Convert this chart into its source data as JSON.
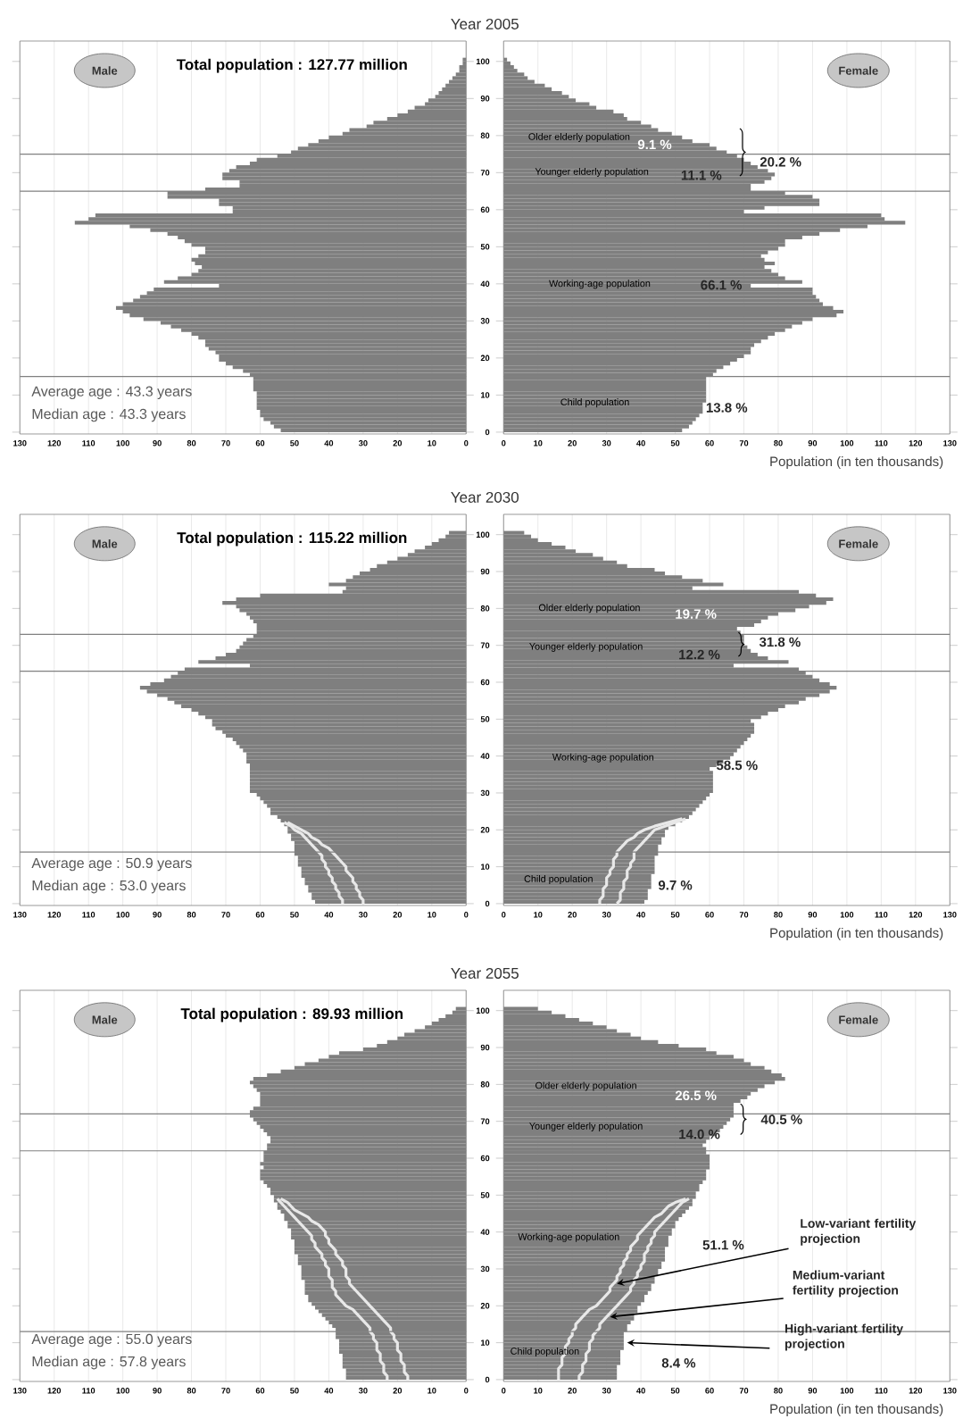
{
  "chart_data": [
    {
      "type": "bar",
      "orientation": "horizontal",
      "title": "Year 2005",
      "x": [
        0,
        1,
        2,
        3,
        4,
        5,
        6,
        7,
        8,
        9,
        10,
        11,
        12,
        13,
        14,
        15,
        16,
        17,
        18,
        19,
        20,
        21,
        22,
        23,
        24,
        25,
        26,
        27,
        28,
        29,
        30,
        31,
        32,
        33,
        34,
        35,
        36,
        37,
        38,
        39,
        40,
        41,
        42,
        43,
        44,
        45,
        46,
        47,
        48,
        49,
        50,
        51,
        52,
        53,
        54,
        55,
        56,
        57,
        58,
        59,
        60,
        61,
        62,
        63,
        64,
        65,
        66,
        67,
        68,
        69,
        70,
        71,
        72,
        73,
        74,
        75,
        76,
        77,
        78,
        79,
        80,
        81,
        82,
        83,
        84,
        85,
        86,
        87,
        88,
        89,
        90,
        91,
        92,
        93,
        94,
        95,
        96,
        97,
        98,
        99,
        100
      ],
      "series": [
        {
          "name": "Male",
          "color": "#7f7f7f",
          "values": [
            54,
            56,
            57,
            59,
            60,
            60,
            61,
            61,
            61,
            61,
            61,
            62,
            62,
            62,
            62,
            63,
            65,
            68,
            70,
            72,
            72,
            73,
            75,
            76,
            76,
            78,
            80,
            83,
            86,
            89,
            94,
            98,
            100,
            102,
            100,
            97,
            95,
            93,
            91,
            72,
            88,
            84,
            80,
            78,
            77,
            79,
            80,
            78,
            76,
            76,
            80,
            82,
            84,
            87,
            92,
            98,
            114,
            110,
            108,
            68,
            68,
            72,
            72,
            87,
            87,
            76,
            66,
            66,
            71,
            71,
            69,
            67,
            63,
            61,
            55,
            51,
            49,
            46,
            43,
            40,
            36,
            34,
            29,
            27,
            23,
            20,
            17,
            15,
            12,
            11,
            9,
            8,
            7,
            6,
            5,
            4,
            3,
            2,
            2,
            1,
            1
          ]
        }
      ],
      "xlim": [
        130,
        0
      ],
      "xticks": [
        0,
        10,
        20,
        30,
        40,
        50,
        60,
        70,
        80,
        90,
        100,
        110,
        120,
        130
      ],
      "ylim": [
        -0.5,
        105.5
      ],
      "yticks": [
        0,
        10,
        20,
        30,
        40,
        50,
        60,
        70,
        80,
        90,
        100
      ],
      "grid": "x",
      "tick_labels": "x",
      "ref_lines": [
        {
          "axis": "y",
          "value": 75,
          "color": "#808080"
        },
        {
          "axis": "y",
          "value": 65,
          "color": "#808080"
        },
        {
          "axis": "y",
          "value": 15,
          "color": "#808080"
        }
      ],
      "annotations": [
        "Total population : 127.77 million",
        "Average age : 43.3 years",
        "Median age : 43.3 years"
      ]
    },
    {
      "type": "bar",
      "orientation": "horizontal",
      "xlabel": "Population (in ten thousands)",
      "x": [
        0,
        1,
        2,
        3,
        4,
        5,
        6,
        7,
        8,
        9,
        10,
        11,
        12,
        13,
        14,
        15,
        16,
        17,
        18,
        19,
        20,
        21,
        22,
        23,
        24,
        25,
        26,
        27,
        28,
        29,
        30,
        31,
        32,
        33,
        34,
        35,
        36,
        37,
        38,
        39,
        40,
        41,
        42,
        43,
        44,
        45,
        46,
        47,
        48,
        49,
        50,
        51,
        52,
        53,
        54,
        55,
        56,
        57,
        58,
        59,
        60,
        61,
        62,
        63,
        64,
        65,
        66,
        67,
        68,
        69,
        70,
        71,
        72,
        73,
        74,
        75,
        76,
        77,
        78,
        79,
        80,
        81,
        82,
        83,
        84,
        85,
        86,
        87,
        88,
        89,
        90,
        91,
        92,
        93,
        94,
        95,
        96,
        97,
        98,
        99,
        100
      ],
      "series": [
        {
          "name": "Female",
          "color": "#7f7f7f",
          "values": [
            52,
            54,
            55,
            56,
            57,
            58,
            58,
            58,
            59,
            59,
            59,
            59,
            59,
            59,
            59,
            61,
            62,
            64,
            66,
            68,
            70,
            72,
            72,
            73,
            75,
            77,
            79,
            82,
            84,
            87,
            90,
            97,
            99,
            96,
            93,
            92,
            91,
            90,
            90,
            72,
            87,
            82,
            80,
            78,
            76,
            79,
            76,
            75,
            77,
            80,
            82,
            82,
            87,
            92,
            98,
            106,
            117,
            111,
            110,
            70,
            76,
            92,
            92,
            90,
            82,
            72,
            72,
            76,
            78,
            79,
            77,
            74,
            72,
            70,
            68,
            65,
            62,
            60,
            55,
            52,
            49,
            45,
            43,
            40,
            36,
            35,
            32,
            27,
            25,
            21,
            19,
            17,
            14,
            12,
            9,
            7,
            6,
            4,
            3,
            2,
            1
          ]
        }
      ],
      "xlim": [
        0,
        130
      ],
      "xticks": [
        0,
        10,
        20,
        30,
        40,
        50,
        60,
        70,
        80,
        90,
        100,
        110,
        120,
        130
      ],
      "ylim": [
        -0.5,
        105.5
      ],
      "yticks": [
        0,
        10,
        20,
        30,
        40,
        50,
        60,
        70,
        80,
        90,
        100
      ],
      "grid": "x",
      "ref_lines": [
        {
          "axis": "y",
          "value": 75,
          "color": "#808080"
        },
        {
          "axis": "y",
          "value": 65,
          "color": "#808080"
        },
        {
          "axis": "y",
          "value": 15,
          "color": "#808080"
        }
      ],
      "annotations": [
        "Older elderly population",
        "9.1 %",
        "Younger elderly population",
        "11.1 %",
        "20.2 %",
        "Working-age population",
        "66.1 %",
        "Child population",
        "13.8 %"
      ]
    },
    {
      "type": "bar",
      "orientation": "horizontal",
      "title": "Year 2030",
      "x": [
        0,
        1,
        2,
        3,
        4,
        5,
        6,
        7,
        8,
        9,
        10,
        11,
        12,
        13,
        14,
        15,
        16,
        17,
        18,
        19,
        20,
        21,
        22,
        23,
        24,
        25,
        26,
        27,
        28,
        29,
        30,
        31,
        32,
        33,
        34,
        35,
        36,
        37,
        38,
        39,
        40,
        41,
        42,
        43,
        44,
        45,
        46,
        47,
        48,
        49,
        50,
        51,
        52,
        53,
        54,
        55,
        56,
        57,
        58,
        59,
        60,
        61,
        62,
        63,
        64,
        65,
        66,
        67,
        68,
        69,
        70,
        71,
        72,
        73,
        74,
        75,
        76,
        77,
        78,
        79,
        80,
        81,
        82,
        83,
        84,
        85,
        86,
        87,
        88,
        89,
        90,
        91,
        92,
        93,
        94,
        95,
        96,
        97,
        98,
        99,
        100
      ],
      "series": [
        {
          "name": "Male",
          "color": "#7f7f7f",
          "values": [
            44,
            45,
            45,
            46,
            46,
            47,
            47,
            48,
            48,
            48,
            49,
            49,
            49,
            50,
            50,
            50,
            50,
            51,
            51,
            52,
            52,
            53,
            54,
            55,
            57,
            57,
            58,
            59,
            60,
            61,
            63,
            63,
            63,
            63,
            63,
            63,
            63,
            63,
            64,
            64,
            64,
            65,
            66,
            67,
            68,
            70,
            71,
            73,
            74,
            74,
            76,
            78,
            80,
            83,
            85,
            87,
            90,
            93,
            95,
            92,
            88,
            86,
            84,
            82,
            63,
            78,
            73,
            70,
            67,
            66,
            65,
            64,
            62,
            61,
            61,
            61,
            62,
            63,
            64,
            66,
            67,
            71,
            67,
            60,
            36,
            35,
            40,
            35,
            33,
            31,
            28,
            26,
            23,
            20,
            17,
            15,
            12,
            10,
            8,
            6,
            5
          ]
        },
        {
          "type": "line",
          "color": "#e8e8e8",
          "x": [
            0,
            1,
            2,
            3,
            4,
            5,
            6,
            7,
            8,
            9,
            10,
            11,
            12,
            13,
            14,
            15,
            16,
            17,
            18,
            19,
            20,
            21,
            22
          ],
          "values": [
            36,
            36,
            37,
            37,
            38,
            38,
            39,
            39,
            40,
            40,
            41,
            41,
            42,
            42,
            43,
            44,
            45,
            46,
            47,
            48,
            50,
            51,
            53
          ]
        },
        {
          "type": "line",
          "color": "#e8e8e8",
          "x": [
            0,
            1,
            2,
            3,
            4,
            5,
            6,
            7,
            8,
            9,
            10,
            11,
            12,
            13,
            14,
            15,
            16,
            17,
            18,
            19,
            20,
            21,
            22
          ],
          "values": [
            30,
            30,
            31,
            31,
            32,
            32,
            33,
            33,
            34,
            35,
            35,
            36,
            37,
            38,
            39,
            40,
            42,
            43,
            45,
            46,
            48,
            50,
            52
          ]
        }
      ],
      "xlim": [
        130,
        0
      ],
      "xticks": [
        0,
        10,
        20,
        30,
        40,
        50,
        60,
        70,
        80,
        90,
        100,
        110,
        120,
        130
      ],
      "ylim": [
        -0.5,
        105.5
      ],
      "yticks": [
        0,
        10,
        20,
        30,
        40,
        50,
        60,
        70,
        80,
        90,
        100
      ],
      "grid": "x",
      "tick_labels": "x",
      "ref_lines": [
        {
          "axis": "y",
          "value": 73,
          "color": "#808080"
        },
        {
          "axis": "y",
          "value": 63,
          "color": "#808080"
        },
        {
          "axis": "y",
          "value": 14,
          "color": "#808080"
        }
      ],
      "annotations": [
        "Total population : 115.22 million",
        "Average age : 50.9 years",
        "Median age : 53.0 years"
      ]
    },
    {
      "type": "bar",
      "orientation": "horizontal",
      "xlabel": "Population (in ten thousands)",
      "x": [
        0,
        1,
        2,
        3,
        4,
        5,
        6,
        7,
        8,
        9,
        10,
        11,
        12,
        13,
        14,
        15,
        16,
        17,
        18,
        19,
        20,
        21,
        22,
        23,
        24,
        25,
        26,
        27,
        28,
        29,
        30,
        31,
        32,
        33,
        34,
        35,
        36,
        37,
        38,
        39,
        40,
        41,
        42,
        43,
        44,
        45,
        46,
        47,
        48,
        49,
        50,
        51,
        52,
        53,
        54,
        55,
        56,
        57,
        58,
        59,
        60,
        61,
        62,
        63,
        64,
        65,
        66,
        67,
        68,
        69,
        70,
        71,
        72,
        73,
        74,
        75,
        76,
        77,
        78,
        79,
        80,
        81,
        82,
        83,
        84,
        85,
        86,
        87,
        88,
        89,
        90,
        91,
        92,
        93,
        94,
        95,
        96,
        97,
        98,
        99,
        100
      ],
      "series": [
        {
          "name": "Female",
          "color": "#7f7f7f",
          "values": [
            41,
            42,
            42,
            42,
            43,
            43,
            43,
            43,
            44,
            44,
            44,
            44,
            44,
            45,
            45,
            45,
            46,
            46,
            47,
            47,
            48,
            50,
            52,
            54,
            55,
            56,
            57,
            58,
            59,
            60,
            61,
            61,
            61,
            61,
            61,
            61,
            60,
            62,
            64,
            66,
            67,
            68,
            69,
            70,
            71,
            72,
            73,
            73,
            73,
            72,
            75,
            77,
            80,
            82,
            86,
            88,
            92,
            95,
            97,
            95,
            92,
            90,
            88,
            86,
            67,
            83,
            77,
            74,
            72,
            71,
            70,
            70,
            70,
            69,
            68,
            73,
            75,
            77,
            80,
            85,
            89,
            94,
            96,
            91,
            86,
            55,
            64,
            58,
            52,
            47,
            44,
            36,
            33,
            29,
            26,
            21,
            18,
            14,
            10,
            8,
            6
          ]
        },
        {
          "type": "line",
          "color": "#e8e8e8",
          "x": [
            0,
            1,
            2,
            3,
            4,
            5,
            6,
            7,
            8,
            9,
            10,
            11,
            12,
            13,
            14,
            15,
            16,
            17,
            18,
            19,
            20,
            21,
            22,
            23
          ],
          "values": [
            33,
            34,
            34,
            34,
            35,
            35,
            35,
            36,
            36,
            36,
            37,
            37,
            38,
            38,
            38,
            39,
            40,
            41,
            42,
            43,
            44,
            47,
            50,
            53
          ]
        },
        {
          "type": "line",
          "color": "#e8e8e8",
          "x": [
            0,
            1,
            2,
            3,
            4,
            5,
            6,
            7,
            8,
            9,
            10,
            11,
            12,
            13,
            14,
            15,
            16,
            17,
            18,
            19,
            20,
            21,
            22,
            23
          ],
          "values": [
            28,
            28,
            29,
            29,
            29,
            30,
            30,
            30,
            31,
            31,
            32,
            32,
            32,
            33,
            33,
            34,
            35,
            36,
            38,
            39,
            41,
            44,
            48,
            52
          ]
        }
      ],
      "xlim": [
        0,
        130
      ],
      "xticks": [
        0,
        10,
        20,
        30,
        40,
        50,
        60,
        70,
        80,
        90,
        100,
        110,
        120,
        130
      ],
      "ylim": [
        -0.5,
        105.5
      ],
      "yticks": [
        0,
        10,
        20,
        30,
        40,
        50,
        60,
        70,
        80,
        90,
        100
      ],
      "grid": "x",
      "ref_lines": [
        {
          "axis": "y",
          "value": 73,
          "color": "#808080"
        },
        {
          "axis": "y",
          "value": 63,
          "color": "#808080"
        },
        {
          "axis": "y",
          "value": 14,
          "color": "#808080"
        }
      ],
      "annotations": [
        "Older elderly population",
        "19.7 %",
        "Younger elderly population",
        "12.2 %",
        "31.8 %",
        "Working-age population",
        "58.5 %",
        "Child population",
        "9.7 %"
      ]
    },
    {
      "type": "bar",
      "orientation": "horizontal",
      "title": "Year 2055",
      "x": [
        0,
        1,
        2,
        3,
        4,
        5,
        6,
        7,
        8,
        9,
        10,
        11,
        12,
        13,
        14,
        15,
        16,
        17,
        18,
        19,
        20,
        21,
        22,
        23,
        24,
        25,
        26,
        27,
        28,
        29,
        30,
        31,
        32,
        33,
        34,
        35,
        36,
        37,
        38,
        39,
        40,
        41,
        42,
        43,
        44,
        45,
        46,
        47,
        48,
        49,
        50,
        51,
        52,
        53,
        54,
        55,
        56,
        57,
        58,
        59,
        60,
        61,
        62,
        63,
        64,
        65,
        66,
        67,
        68,
        69,
        70,
        71,
        72,
        73,
        74,
        75,
        76,
        77,
        78,
        79,
        80,
        81,
        82,
        83,
        84,
        85,
        86,
        87,
        88,
        89,
        90,
        91,
        92,
        93,
        94,
        95,
        96,
        97,
        98,
        99,
        100
      ],
      "series": [
        {
          "name": "Male",
          "color": "#7f7f7f",
          "values": [
            35,
            35,
            35,
            36,
            36,
            36,
            36,
            37,
            37,
            37,
            37,
            38,
            38,
            38,
            39,
            40,
            41,
            42,
            43,
            44,
            45,
            46,
            46,
            47,
            47,
            47,
            47,
            48,
            48,
            48,
            48,
            49,
            49,
            49,
            50,
            50,
            50,
            50,
            51,
            51,
            51,
            52,
            52,
            53,
            53,
            54,
            55,
            55,
            56,
            56,
            57,
            57,
            58,
            59,
            60,
            60,
            60,
            59,
            60,
            59,
            59,
            59,
            58,
            58,
            57,
            57,
            58,
            59,
            60,
            61,
            62,
            63,
            63,
            62,
            60,
            60,
            60,
            60,
            61,
            62,
            63,
            62,
            58,
            54,
            50,
            47,
            43,
            40,
            37,
            30,
            26,
            23,
            20,
            18,
            15,
            12,
            10,
            8,
            6,
            4,
            3
          ]
        },
        {
          "type": "line",
          "color": "#e8e8e8",
          "x": [
            0,
            1,
            2,
            3,
            4,
            5,
            6,
            7,
            8,
            9,
            10,
            11,
            12,
            13,
            14,
            15,
            16,
            17,
            18,
            19,
            20,
            21,
            22,
            23,
            24,
            25,
            26,
            27,
            28,
            29,
            30,
            31,
            32,
            33,
            34,
            35,
            36,
            37,
            38,
            39,
            40,
            41,
            42,
            43,
            44,
            45,
            46,
            47,
            48,
            49
          ],
          "values": [
            23,
            23,
            24,
            24,
            24,
            25,
            25,
            25,
            26,
            26,
            26,
            27,
            27,
            28,
            28,
            29,
            30,
            31,
            32,
            33,
            35,
            36,
            37,
            38,
            38,
            39,
            39,
            39,
            40,
            40,
            40,
            41,
            41,
            42,
            42,
            43,
            44,
            44,
            45,
            45,
            46,
            47,
            48,
            49,
            50,
            51,
            52,
            53,
            54,
            55
          ]
        },
        {
          "type": "line",
          "color": "#e8e8e8",
          "x": [
            0,
            1,
            2,
            3,
            4,
            5,
            6,
            7,
            8,
            9,
            10,
            11,
            12,
            13,
            14,
            15,
            16,
            17,
            18,
            19,
            20,
            21,
            22,
            23,
            24,
            25,
            26,
            27,
            28,
            29,
            30,
            31,
            32,
            33,
            34,
            35,
            36,
            37,
            38,
            39,
            40,
            41,
            42,
            43,
            44,
            45,
            46,
            47,
            48,
            49
          ],
          "values": [
            17,
            17,
            18,
            18,
            18,
            19,
            19,
            19,
            20,
            20,
            20,
            21,
            21,
            22,
            22,
            23,
            24,
            25,
            26,
            27,
            28,
            29,
            30,
            31,
            32,
            33,
            34,
            34,
            35,
            35,
            35,
            36,
            36,
            37,
            38,
            38,
            39,
            40,
            40,
            41,
            41,
            42,
            43,
            45,
            46,
            48,
            50,
            51,
            52,
            54
          ]
        }
      ],
      "xlim": [
        130,
        0
      ],
      "xticks": [
        0,
        10,
        20,
        30,
        40,
        50,
        60,
        70,
        80,
        90,
        100,
        110,
        120,
        130
      ],
      "ylim": [
        -0.5,
        105.5
      ],
      "yticks": [
        0,
        10,
        20,
        30,
        40,
        50,
        60,
        70,
        80,
        90,
        100
      ],
      "grid": "x",
      "tick_labels": "x",
      "ref_lines": [
        {
          "axis": "y",
          "value": 72,
          "color": "#808080"
        },
        {
          "axis": "y",
          "value": 62,
          "color": "#808080"
        },
        {
          "axis": "y",
          "value": 13,
          "color": "#808080"
        }
      ],
      "annotations": [
        "Total population : 89.93 million",
        "Average age : 55.0 years",
        "Median age : 57.8 years"
      ]
    },
    {
      "type": "bar",
      "orientation": "horizontal",
      "xlabel": "Population (in ten thousands)",
      "x": [
        0,
        1,
        2,
        3,
        4,
        5,
        6,
        7,
        8,
        9,
        10,
        11,
        12,
        13,
        14,
        15,
        16,
        17,
        18,
        19,
        20,
        21,
        22,
        23,
        24,
        25,
        26,
        27,
        28,
        29,
        30,
        31,
        32,
        33,
        34,
        35,
        36,
        37,
        38,
        39,
        40,
        41,
        42,
        43,
        44,
        45,
        46,
        47,
        48,
        49,
        50,
        51,
        52,
        53,
        54,
        55,
        56,
        57,
        58,
        59,
        60,
        61,
        62,
        63,
        64,
        65,
        66,
        67,
        68,
        69,
        70,
        71,
        72,
        73,
        74,
        75,
        76,
        77,
        78,
        79,
        80,
        81,
        82,
        83,
        84,
        85,
        86,
        87,
        88,
        89,
        90,
        91,
        92,
        93,
        94,
        95,
        96,
        97,
        98,
        99,
        100
      ],
      "series": [
        {
          "name": "Female",
          "color": "#7f7f7f",
          "values": [
            33,
            33,
            33,
            33,
            34,
            34,
            34,
            34,
            35,
            35,
            35,
            35,
            35,
            36,
            36,
            37,
            38,
            38,
            39,
            39,
            40,
            41,
            41,
            42,
            43,
            43,
            44,
            44,
            45,
            45,
            46,
            46,
            47,
            47,
            47,
            47,
            48,
            48,
            48,
            49,
            49,
            50,
            50,
            51,
            52,
            53,
            54,
            55,
            55,
            56,
            56,
            57,
            57,
            58,
            59,
            59,
            59,
            60,
            60,
            60,
            60,
            59,
            59,
            58,
            59,
            60,
            62,
            63,
            64,
            65,
            66,
            67,
            67,
            67,
            67,
            69,
            71,
            72,
            74,
            76,
            79,
            82,
            81,
            78,
            76,
            72,
            70,
            67,
            62,
            59,
            51,
            45,
            40,
            37,
            33,
            30,
            26,
            22,
            18,
            14,
            10
          ]
        },
        {
          "type": "line",
          "color": "#e8e8e8",
          "x": [
            0,
            1,
            2,
            3,
            4,
            5,
            6,
            7,
            8,
            9,
            10,
            11,
            12,
            13,
            14,
            15,
            16,
            17,
            18,
            19,
            20,
            21,
            22,
            23,
            24,
            25,
            26,
            27,
            28,
            29,
            30,
            31,
            32,
            33,
            34,
            35,
            36,
            37,
            38,
            39,
            40,
            41,
            42,
            43,
            44,
            45,
            46,
            47,
            48,
            49
          ],
          "values": [
            22,
            22,
            23,
            23,
            23,
            24,
            24,
            24,
            25,
            25,
            25,
            26,
            26,
            27,
            28,
            28,
            29,
            30,
            31,
            32,
            33,
            34,
            35,
            36,
            37,
            37,
            38,
            38,
            39,
            39,
            40,
            40,
            41,
            41,
            41,
            42,
            42,
            43,
            43,
            44,
            44,
            45,
            46,
            47,
            48,
            49,
            50,
            51,
            52,
            54
          ]
        },
        {
          "type": "line",
          "color": "#e8e8e8",
          "x": [
            0,
            1,
            2,
            3,
            4,
            5,
            6,
            7,
            8,
            9,
            10,
            11,
            12,
            13,
            14,
            15,
            16,
            17,
            18,
            19,
            20,
            21,
            22,
            23,
            24,
            25,
            26,
            27,
            28,
            29,
            30,
            31,
            32,
            33,
            34,
            35,
            36,
            37,
            38,
            39,
            40,
            41,
            42,
            43,
            44,
            45,
            46,
            47,
            48,
            49
          ],
          "values": [
            16,
            16,
            16,
            16,
            17,
            17,
            17,
            18,
            18,
            18,
            19,
            19,
            20,
            20,
            21,
            21,
            22,
            23,
            24,
            25,
            27,
            28,
            29,
            30,
            31,
            31,
            32,
            33,
            33,
            34,
            34,
            35,
            35,
            36,
            36,
            37,
            37,
            38,
            39,
            39,
            40,
            41,
            42,
            43,
            44,
            46,
            47,
            48,
            50,
            53
          ]
        }
      ],
      "xlim": [
        0,
        130
      ],
      "xticks": [
        0,
        10,
        20,
        30,
        40,
        50,
        60,
        70,
        80,
        90,
        100,
        110,
        120,
        130
      ],
      "ylim": [
        -0.5,
        105.5
      ],
      "yticks": [
        0,
        10,
        20,
        30,
        40,
        50,
        60,
        70,
        80,
        90,
        100
      ],
      "grid": "x",
      "ref_lines": [
        {
          "axis": "y",
          "value": 72,
          "color": "#808080"
        },
        {
          "axis": "y",
          "value": 62,
          "color": "#808080"
        },
        {
          "axis": "y",
          "value": 13,
          "color": "#808080"
        }
      ],
      "annotations": [
        "Older elderly population",
        "26.5 %",
        "Younger elderly population",
        "14.0 %",
        "40.5 %",
        "Working-age population",
        "51.1 %",
        "Child population",
        "8.4 %",
        {
          "text": "Low-variant fertility projection",
          "x": 33,
          "y": 26
        },
        {
          "text": "Medium-variant fertility projection",
          "x": 31,
          "y": 17
        },
        {
          "text": "High-variant fertility projection",
          "x": 36,
          "y": 10
        }
      ]
    }
  ]
}
